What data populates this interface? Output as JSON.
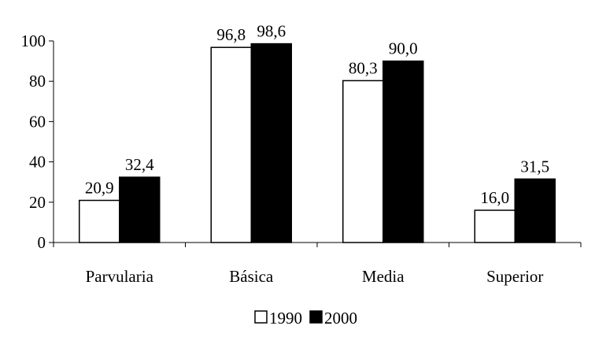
{
  "chart_data": {
    "type": "bar",
    "title": "",
    "xlabel": "",
    "ylabel": "",
    "categories": [
      "Parvularia",
      "Básica",
      "Media",
      "Superior"
    ],
    "series": [
      {
        "name": "1990",
        "values": [
          20.9,
          96.8,
          80.3,
          16.0
        ],
        "labels": [
          "20,9",
          "96,8",
          "80,3",
          "16,0"
        ],
        "color": "#ffffff"
      },
      {
        "name": "2000",
        "values": [
          32.4,
          98.6,
          90.0,
          31.5
        ],
        "labels": [
          "32,4",
          "98,6",
          "90,0",
          "31,5"
        ],
        "color": "#000000"
      }
    ],
    "ylim": [
      0,
      100
    ],
    "yticks": [
      0,
      20,
      40,
      60,
      80,
      100
    ],
    "ytick_labels": [
      "0",
      "20",
      "40",
      "60",
      "80",
      "100"
    ],
    "grid": false,
    "legend_position": "bottom-center",
    "bar_outline_color": "#000000"
  }
}
